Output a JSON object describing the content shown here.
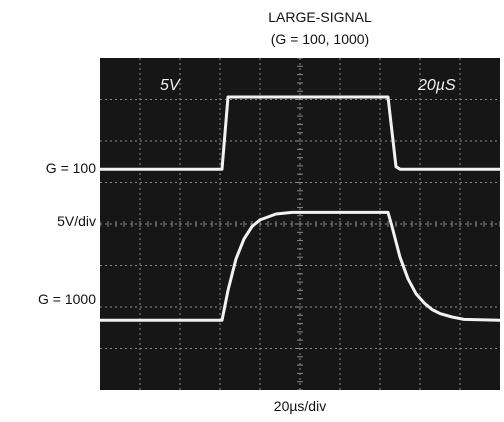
{
  "chart_data": {
    "type": "line",
    "title": "LARGE-SIGNAL",
    "subtitle": "(G = 100, 1000)",
    "xlabel": "20µs/div",
    "ylabel": "5V/div",
    "screen_labels": {
      "volts_per_div": "5V",
      "time_per_div": "20µS"
    },
    "grid": true,
    "xlim": [
      0,
      200
    ],
    "ylim": [
      -20,
      20
    ],
    "series": [
      {
        "name": "G = 100",
        "x": [
          0,
          61,
          64,
          144,
          148,
          150,
          200
        ],
        "y": [
          6.6,
          6.6,
          15.3,
          15.3,
          6.9,
          6.6,
          6.6
        ],
        "color": "#f2f2f2"
      },
      {
        "name": "G = 1000",
        "x": [
          0,
          61,
          64,
          68,
          72,
          76,
          80,
          88,
          96,
          144,
          146,
          150,
          154,
          158,
          162,
          166,
          170,
          176,
          182,
          200
        ],
        "y": [
          -11.6,
          -11.6,
          -8.0,
          -4.2,
          -1.8,
          -0.3,
          0.5,
          1.2,
          1.4,
          1.4,
          -0.3,
          -4.0,
          -6.6,
          -8.4,
          -9.5,
          -10.3,
          -10.8,
          -11.2,
          -11.5,
          -11.6
        ],
        "color": "#f2f2f2"
      }
    ]
  },
  "colors": {
    "screen": "#161616",
    "grid": "#8a8a8a",
    "trace": "#f2f2f2"
  }
}
